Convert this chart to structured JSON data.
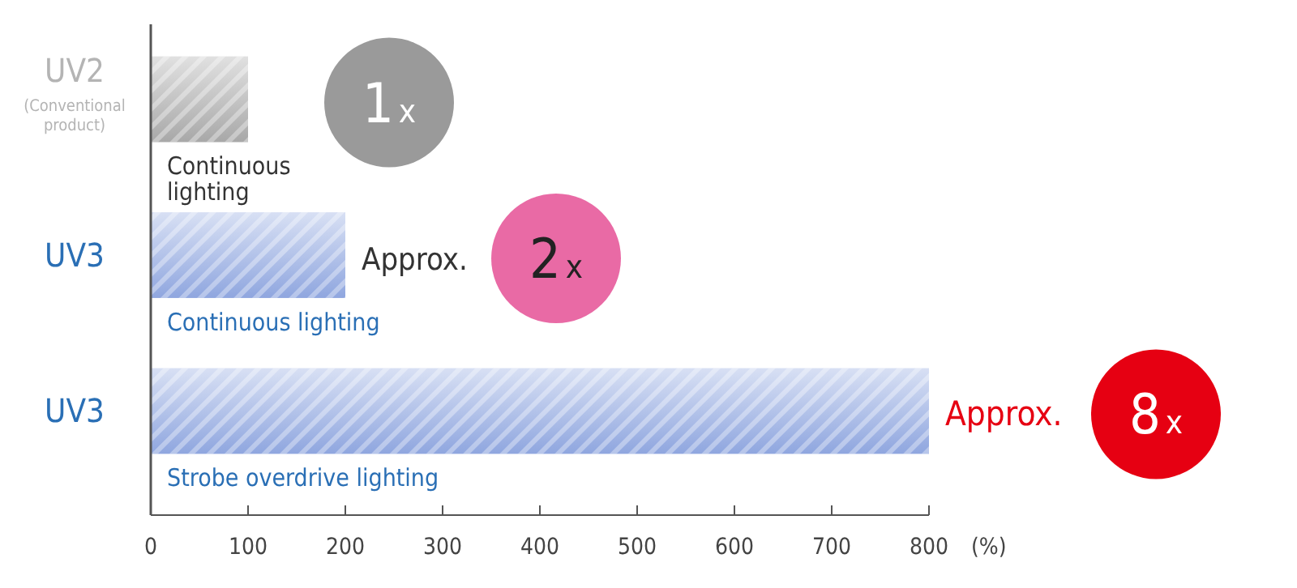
{
  "chart_data": {
    "type": "bar",
    "orientation": "horizontal",
    "categories": [
      "UV2\n(Conventional\nproduct)",
      "UV3",
      "UV3"
    ],
    "values": [
      100,
      200,
      800
    ],
    "colors": [
      "#a8a8a8",
      "#8fa6df",
      "#8fa6df"
    ],
    "annotations": [
      "Continuous\nlighting",
      "Continuous lighting",
      "Strobe overdrive lighting",
      "1x",
      "Approx. 2x",
      "Approx. 8x"
    ],
    "xlim": [
      0,
      800
    ],
    "xticks": [
      0,
      100,
      200,
      300,
      400,
      500,
      600,
      700,
      800
    ],
    "xlabel": "(%)"
  }
}
